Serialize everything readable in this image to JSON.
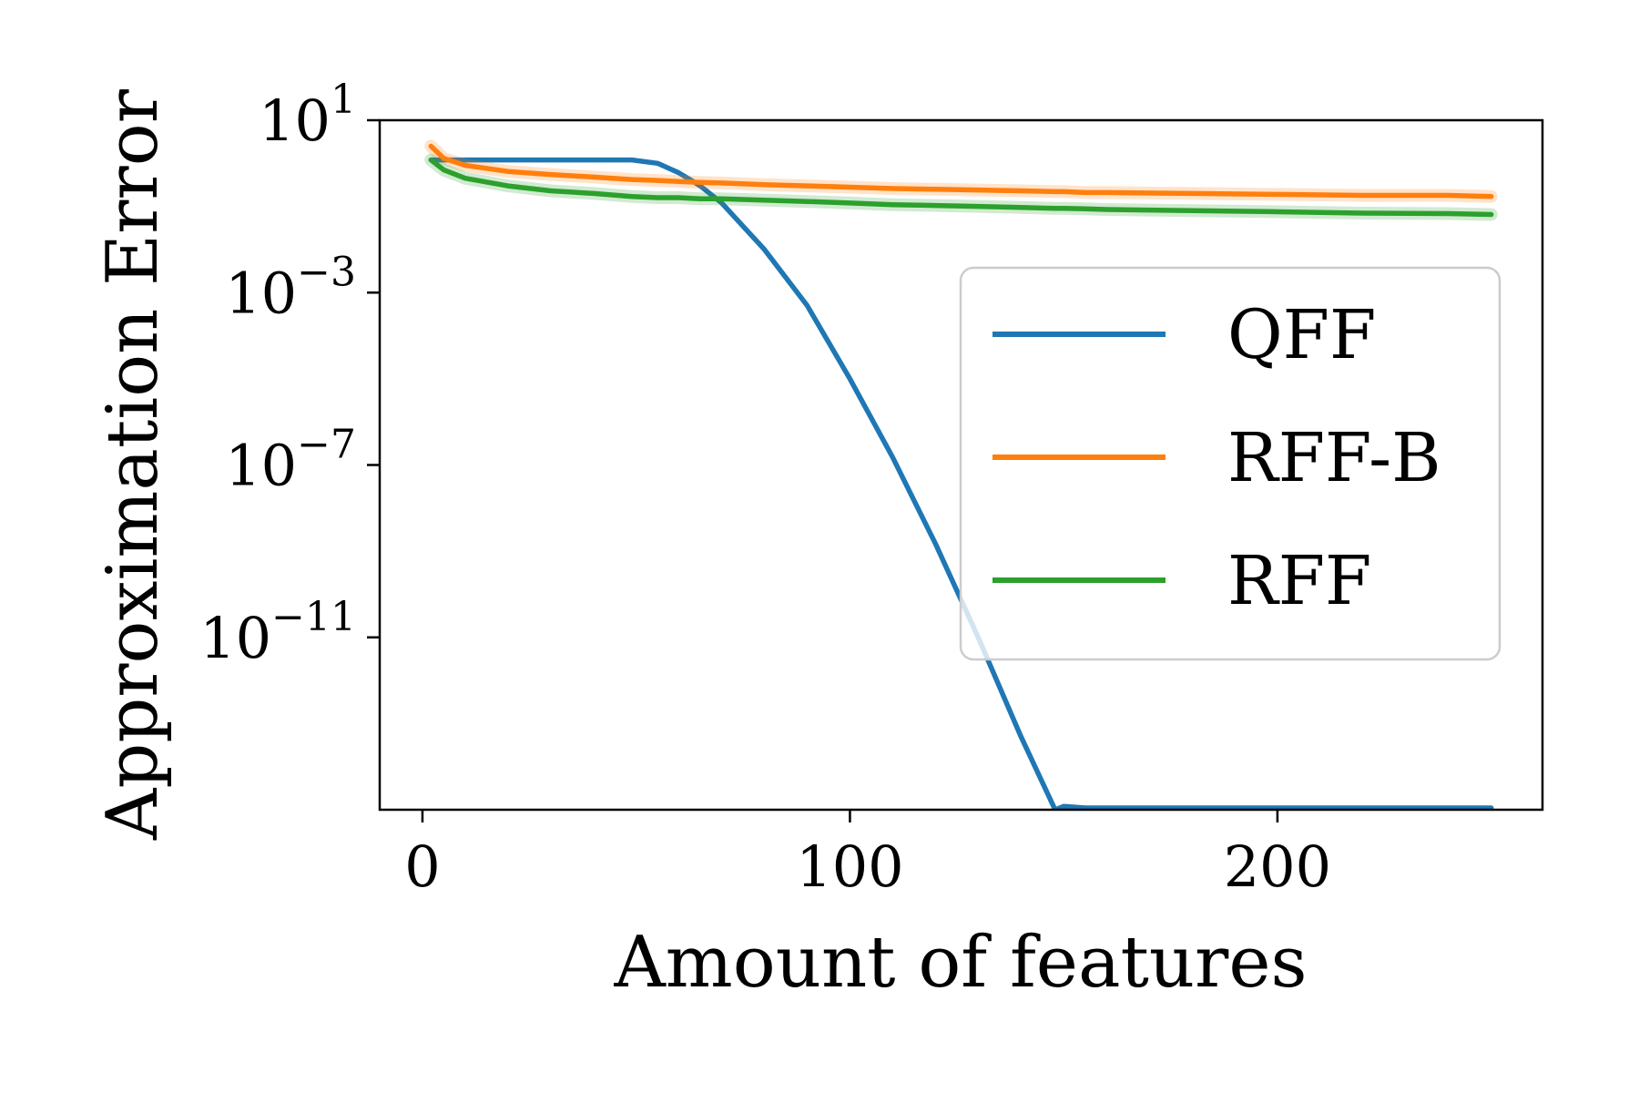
{
  "chart_data": {
    "type": "line",
    "title": "",
    "xlabel": "Amount of features",
    "ylabel": "Approximation Error",
    "xlim": [
      -10,
      262
    ],
    "x_ticks": [
      0,
      100,
      200
    ],
    "x_tick_labels": [
      "0",
      "100",
      "200"
    ],
    "yscale": "log",
    "ylim": [
      1e-15,
      10
    ],
    "y_ticks": [
      10.0,
      0.001,
      1e-07,
      1e-11
    ],
    "y_tick_labels": [
      {
        "base": "10",
        "exp": "1"
      },
      {
        "base": "10",
        "exp": "−3"
      },
      {
        "base": "10",
        "exp": "−7"
      },
      {
        "base": "10",
        "exp": "−11"
      }
    ],
    "grid": false,
    "legend_position": "center-right",
    "x": [
      2,
      5,
      10,
      20,
      30,
      40,
      49,
      55,
      60,
      65,
      70,
      80,
      90,
      100,
      110,
      120,
      130,
      140,
      148,
      150,
      155,
      160,
      180,
      200,
      220,
      240,
      250
    ],
    "series": [
      {
        "name": "QFF",
        "color": "#1f77b4",
        "values": [
          1.2,
          1.2,
          1.2,
          1.2,
          1.2,
          1.2,
          1.2,
          1.0,
          0.6,
          0.3,
          0.12,
          0.01,
          0.0005,
          1e-05,
          1.5e-07,
          1.5e-09,
          1e-11,
          5e-14,
          1e-15,
          1.2e-15,
          1.1e-15,
          1.1e-15,
          1.1e-15,
          1.1e-15,
          1.1e-15,
          1.1e-15,
          1.1e-15
        ]
      },
      {
        "name": "RFF-B",
        "color": "#ff7f0e",
        "values": [
          2.5,
          1.3,
          0.9,
          0.65,
          0.55,
          0.48,
          0.42,
          0.4,
          0.38,
          0.36,
          0.35,
          0.32,
          0.3,
          0.28,
          0.26,
          0.25,
          0.24,
          0.23,
          0.22,
          0.22,
          0.21,
          0.21,
          0.2,
          0.19,
          0.18,
          0.18,
          0.17
        ]
      },
      {
        "name": "RFF",
        "color": "#2ca02c",
        "values": [
          1.2,
          0.7,
          0.45,
          0.3,
          0.23,
          0.2,
          0.17,
          0.16,
          0.16,
          0.15,
          0.15,
          0.14,
          0.13,
          0.12,
          0.11,
          0.105,
          0.1,
          0.095,
          0.09,
          0.09,
          0.088,
          0.085,
          0.08,
          0.075,
          0.07,
          0.068,
          0.065
        ]
      }
    ]
  }
}
